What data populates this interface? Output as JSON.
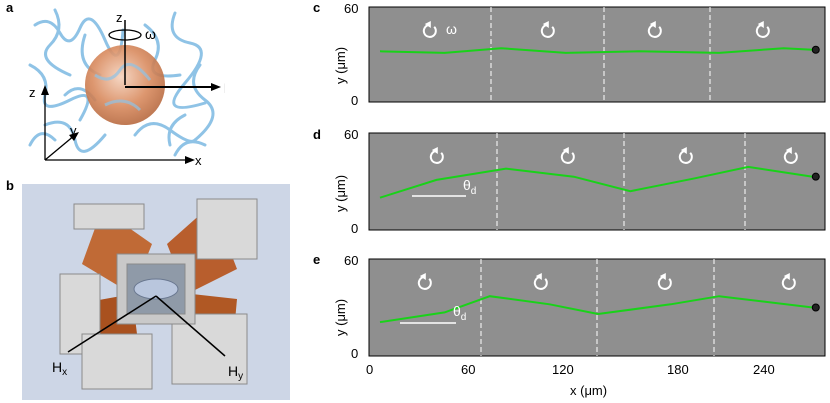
{
  "panels": {
    "a": {
      "label": "a",
      "axis_z": "z",
      "axis_y": "y",
      "axis_x": "x",
      "rot_axis": "z",
      "omega": "ω",
      "force": "F"
    },
    "b": {
      "label": "b",
      "hx": "H",
      "hx_sub": "x",
      "hy": "H",
      "hy_sub": "y"
    },
    "c": {
      "label": "c",
      "omega": "ω"
    },
    "d": {
      "label": "d",
      "theta": "θ",
      "theta_sub": "d"
    },
    "e": {
      "label": "e",
      "theta": "θ",
      "theta_sub": "d"
    }
  },
  "axes": {
    "ylabel": "y (μm)",
    "xlabel": "x (μm)",
    "yticks": [
      "0",
      "60"
    ],
    "xticks": [
      "0",
      "60",
      "120",
      "180",
      "240"
    ]
  },
  "colors": {
    "trajectory": "#19d219",
    "background_micro": "#8f8f8f",
    "polymer": "#8fc3e6",
    "coil": "#b85a25"
  },
  "chart_data": [
    {
      "type": "line",
      "panel": "c",
      "ylim": [
        0,
        60
      ],
      "xlim": [
        0,
        270
      ],
      "x": [
        0,
        40,
        75,
        115,
        160,
        210,
        250,
        268
      ],
      "y": [
        32,
        31,
        34,
        31,
        32,
        31,
        34,
        33
      ]
    },
    {
      "type": "line",
      "panel": "d",
      "ylim": [
        0,
        60
      ],
      "xlim": [
        0,
        270
      ],
      "x": [
        0,
        35,
        78,
        120,
        155,
        195,
        228,
        268
      ],
      "y": [
        20,
        31,
        38,
        33,
        24,
        32,
        39,
        33
      ]
    },
    {
      "type": "line",
      "panel": "e",
      "ylim": [
        0,
        60
      ],
      "xlim": [
        0,
        270
      ],
      "x": [
        0,
        40,
        68,
        105,
        135,
        180,
        210,
        268
      ],
      "y": [
        21,
        27,
        37,
        32,
        26,
        32,
        37,
        30
      ]
    }
  ]
}
